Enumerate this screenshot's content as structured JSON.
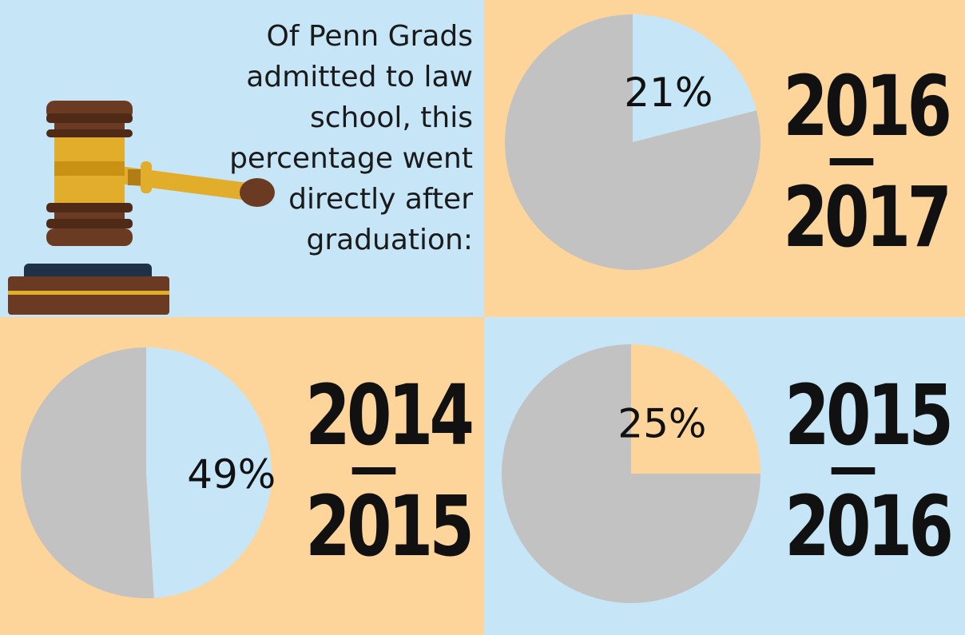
{
  "intro_text": "Of Penn Grads admitted to law school, this percentage went directly after graduation:",
  "colors": {
    "light_blue": "#c6e6f8",
    "orange": "#fdd49a",
    "gray": "#c2c2c2",
    "text": "#111111"
  },
  "chart_data": [
    {
      "type": "pie",
      "period_start": "2016",
      "period_end": "2017",
      "slices": [
        {
          "value": 21,
          "label": "21%",
          "color": "#c6e6f8"
        },
        {
          "value": 79,
          "label": "",
          "color": "#c2c2c2"
        }
      ]
    },
    {
      "type": "pie",
      "period_start": "2014",
      "period_end": "2015",
      "slices": [
        {
          "value": 49,
          "label": "49%",
          "color": "#c6e6f8"
        },
        {
          "value": 51,
          "label": "",
          "color": "#c2c2c2"
        }
      ]
    },
    {
      "type": "pie",
      "period_start": "2015",
      "period_end": "2016",
      "slices": [
        {
          "value": 25,
          "label": "25%",
          "color": "#fdd49a"
        },
        {
          "value": 75,
          "label": "",
          "color": "#c2c2c2"
        }
      ]
    }
  ]
}
